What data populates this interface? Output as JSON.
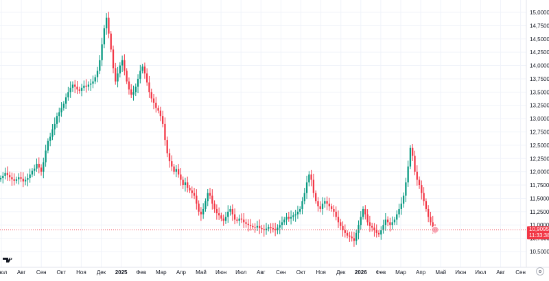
{
  "chart_data": {
    "type": "candlestick",
    "ylim": [
      10.4,
      15.15
    ],
    "yticks": [
      "15,0000",
      "14,7500",
      "14,5000",
      "14,2500",
      "14,0000",
      "13,7500",
      "13,5000",
      "13,2500",
      "13,0000",
      "12,7500",
      "12,5000",
      "12,2500",
      "12,0000",
      "11,7500",
      "11,5000",
      "11,2500",
      "11,0000",
      "10,7500",
      "10,5000"
    ],
    "ytick_values": [
      15.0,
      14.75,
      14.5,
      14.25,
      14.0,
      13.75,
      13.5,
      13.25,
      13.0,
      12.75,
      12.5,
      12.25,
      12.0,
      11.75,
      11.5,
      11.25,
      11.0,
      10.75,
      10.5
    ],
    "xticks": [
      {
        "label": "Июл",
        "major": false
      },
      {
        "label": "Авг",
        "major": false
      },
      {
        "label": "Сен",
        "major": false
      },
      {
        "label": "Окт",
        "major": false
      },
      {
        "label": "Ноя",
        "major": false
      },
      {
        "label": "Дек",
        "major": false
      },
      {
        "label": "2025",
        "major": true
      },
      {
        "label": "Фев",
        "major": false
      },
      {
        "label": "Мар",
        "major": false
      },
      {
        "label": "Апр",
        "major": false
      },
      {
        "label": "Май",
        "major": false
      },
      {
        "label": "Июн",
        "major": false
      },
      {
        "label": "Июл",
        "major": false
      },
      {
        "label": "Авг",
        "major": false
      },
      {
        "label": "Сен",
        "major": false
      },
      {
        "label": "Окт",
        "major": false
      },
      {
        "label": "Ноя",
        "major": false
      },
      {
        "label": "Дек",
        "major": false
      },
      {
        "label": "2026",
        "major": true
      },
      {
        "label": "Фев",
        "major": false
      },
      {
        "label": "Мар",
        "major": false
      },
      {
        "label": "Апр",
        "major": false
      },
      {
        "label": "Май",
        "major": false
      },
      {
        "label": "Июн",
        "major": false
      },
      {
        "label": "Июл",
        "major": false
      },
      {
        "label": "Авг",
        "major": false
      },
      {
        "label": "Сен",
        "major": false
      }
    ],
    "closes": [
      11.88,
      11.92,
      11.98,
      11.94,
      11.9,
      11.86,
      11.83,
      11.86,
      11.9,
      11.87,
      11.82,
      11.85,
      11.88,
      11.95,
      12.02,
      12.06,
      12.15,
      12.08,
      12.0,
      12.18,
      12.4,
      12.58,
      12.66,
      12.8,
      12.9,
      13.05,
      13.12,
      13.2,
      13.28,
      13.4,
      13.5,
      13.58,
      13.64,
      13.6,
      13.55,
      13.52,
      13.58,
      13.62,
      13.6,
      13.64,
      13.66,
      13.7,
      13.78,
      13.9,
      14.1,
      14.4,
      14.7,
      14.9,
      14.6,
      14.3,
      13.95,
      13.7,
      13.85,
      14.0,
      14.1,
      13.9,
      13.7,
      13.55,
      13.45,
      13.5,
      13.6,
      13.75,
      13.9,
      13.98,
      13.85,
      13.68,
      13.5,
      13.38,
      13.3,
      13.2,
      13.15,
      13.05,
      12.9,
      12.6,
      12.35,
      12.2,
      12.1,
      12.0,
      12.05,
      11.95,
      11.85,
      11.75,
      11.8,
      11.7,
      11.65,
      11.6,
      11.55,
      11.4,
      11.25,
      11.2,
      11.3,
      11.45,
      11.6,
      11.55,
      11.4,
      11.3,
      11.22,
      11.18,
      11.12,
      11.08,
      11.15,
      11.25,
      11.3,
      11.2,
      11.1,
      11.08,
      11.12,
      11.1,
      11.05,
      11.02,
      11.0,
      10.98,
      10.96,
      10.95,
      10.98,
      10.94,
      10.92,
      10.9,
      10.93,
      10.96,
      10.94,
      10.92,
      10.9,
      10.95,
      11.0,
      11.05,
      11.1,
      11.15,
      11.12,
      11.15,
      11.18,
      11.2,
      11.25,
      11.3,
      11.45,
      11.6,
      11.8,
      11.95,
      11.85,
      11.6,
      11.45,
      11.35,
      11.3,
      11.4,
      11.45,
      11.4,
      11.35,
      11.3,
      11.25,
      11.15,
      11.05,
      10.98,
      10.9,
      10.85,
      10.8,
      10.78,
      10.75,
      10.7,
      10.85,
      11.0,
      11.15,
      11.3,
      11.2,
      11.05,
      10.98,
      10.95,
      10.9,
      10.85,
      10.82,
      10.9,
      11.0,
      11.1,
      11.05,
      11.0,
      11.05,
      11.1,
      11.2,
      11.3,
      11.4,
      11.55,
      11.8,
      12.1,
      12.45,
      12.3,
      12.0,
      11.85,
      11.75,
      11.6,
      11.45,
      11.3,
      11.15,
      11.05,
      10.95,
      10.91
    ],
    "current_price": "10,9095",
    "countdown": "11:33:38"
  }
}
